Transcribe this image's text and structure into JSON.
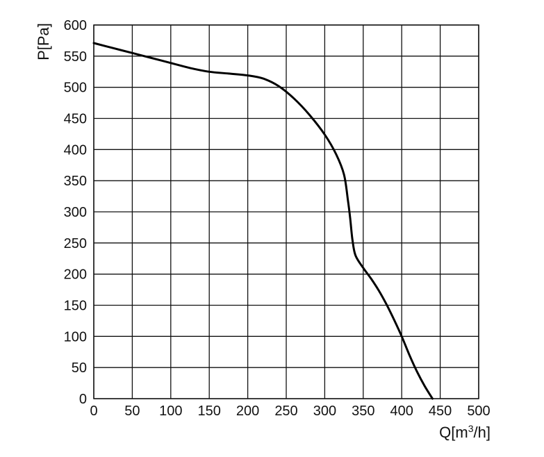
{
  "chart_data": {
    "type": "line",
    "xlabel": "Q[m",
    "xlabel_sup": "3",
    "xlabel_tail": "/h]",
    "ylabel": "P[Pa]",
    "xlim": [
      0,
      500
    ],
    "ylim": [
      0,
      600
    ],
    "x_ticks": [
      0,
      50,
      100,
      150,
      200,
      250,
      300,
      350,
      400,
      450,
      500
    ],
    "y_ticks": [
      0,
      50,
      100,
      150,
      200,
      250,
      300,
      350,
      400,
      450,
      500,
      550,
      600
    ],
    "grid": true,
    "series": [
      {
        "x": [
          0,
          25,
          50,
          75,
          100,
          125,
          150,
          175,
          200,
          220,
          240,
          260,
          280,
          300,
          315,
          325,
          330,
          333,
          336,
          340,
          350,
          360,
          370,
          380,
          390,
          400,
          410,
          420,
          430,
          440
        ],
        "y": [
          571,
          563,
          555,
          547,
          539,
          531,
          525,
          522,
          519,
          514,
          502,
          482,
          456,
          424,
          392,
          360,
          320,
          290,
          255,
          230,
          210,
          193,
          174,
          152,
          127,
          100,
          70,
          43,
          20,
          0
        ]
      }
    ]
  }
}
